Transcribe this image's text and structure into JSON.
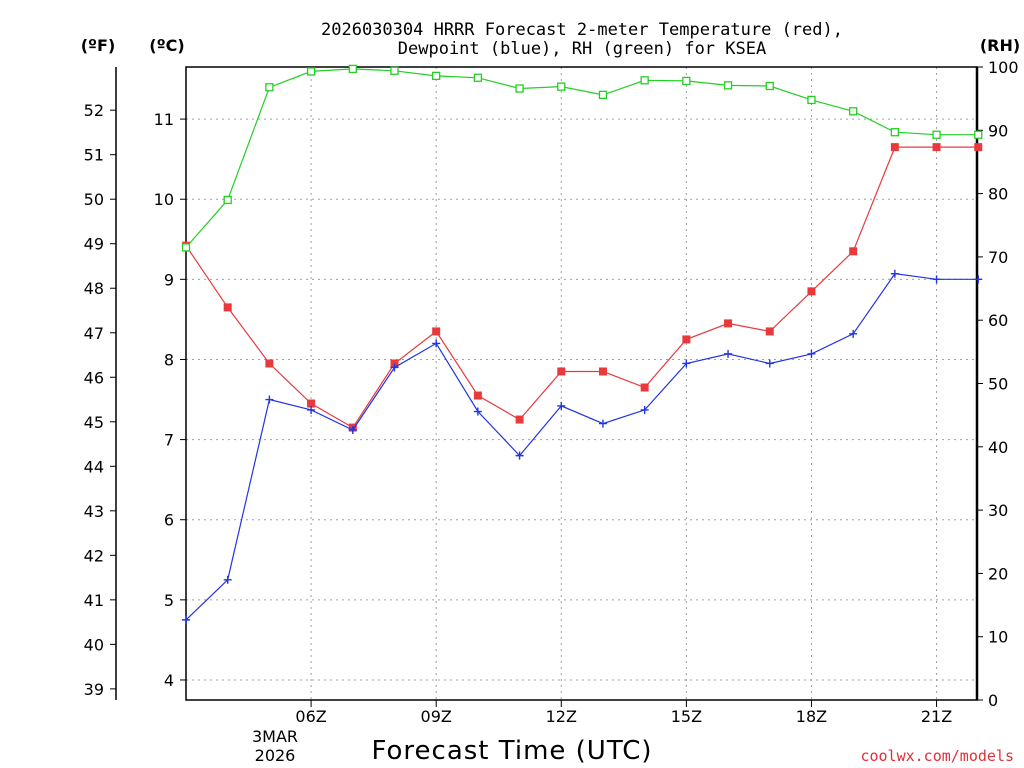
{
  "chart_data": {
    "type": "line",
    "title_line1": "2026030304 HRRR Forecast 2-meter Temperature (red),",
    "title_line2": "Dewpoint (blue), RH (green) for KSEA",
    "xlabel": "Forecast Time (UTC)",
    "credit": "coolwx.com/models",
    "unit_labels": {
      "fahrenheit": "(ºF)",
      "celsius": "(ºC)",
      "rh": "(RH)"
    },
    "x_hours": [
      3,
      4,
      5,
      6,
      7,
      8,
      9,
      10,
      11,
      12,
      13,
      14,
      15,
      16,
      17,
      18,
      19,
      20,
      21,
      22
    ],
    "x_range": [
      3,
      21.97
    ],
    "x_ticks": [
      {
        "hour": 6,
        "label": "06Z"
      },
      {
        "hour": 9,
        "label": "09Z"
      },
      {
        "hour": 12,
        "label": "12Z"
      },
      {
        "hour": 15,
        "label": "15Z"
      },
      {
        "hour": 18,
        "label": "18Z"
      },
      {
        "hour": 21,
        "label": "21Z"
      }
    ],
    "date_labels": [
      "3MAR",
      "2026"
    ],
    "celsius_range": [
      3.75,
      11.65
    ],
    "celsius_ticks": [
      4,
      5,
      6,
      7,
      8,
      9,
      10,
      11
    ],
    "fahrenheit_ticks": [
      39,
      40,
      41,
      42,
      43,
      44,
      45,
      46,
      47,
      48,
      49,
      50,
      51,
      52
    ],
    "rh_range": [
      0,
      100
    ],
    "rh_ticks": [
      0,
      10,
      20,
      30,
      40,
      50,
      60,
      70,
      80,
      90,
      100
    ],
    "colors": {
      "temperature": "#e8393c",
      "dewpoint": "#2135e0",
      "rh": "#22d022",
      "grid": "#a0a0a0",
      "credit": "#e0303a"
    },
    "series": [
      {
        "name": "Temperature",
        "axis": "celsius",
        "marker": "filled-square",
        "color": "#e8393c",
        "values": [
          9.42,
          8.65,
          7.95,
          7.45,
          7.15,
          7.95,
          8.35,
          7.55,
          7.25,
          7.85,
          7.85,
          7.65,
          8.25,
          8.45,
          8.35,
          8.85,
          9.35,
          10.65,
          10.65,
          10.65
        ]
      },
      {
        "name": "Dewpoint",
        "axis": "celsius",
        "marker": "plus",
        "color": "#2135e0",
        "values": [
          4.75,
          5.25,
          7.5,
          7.37,
          7.12,
          7.9,
          8.2,
          7.35,
          6.8,
          7.42,
          7.2,
          7.37,
          7.95,
          8.07,
          7.95,
          8.07,
          8.32,
          9.07,
          9.0,
          9.0
        ]
      },
      {
        "name": "RH",
        "axis": "rh",
        "marker": "open-square",
        "color": "#22d022",
        "values": [
          71.5,
          79.0,
          96.8,
          99.3,
          99.7,
          99.4,
          98.6,
          98.3,
          96.6,
          96.9,
          95.6,
          97.9,
          97.8,
          97.1,
          97.0,
          94.8,
          93.0,
          89.7,
          89.3,
          89.3
        ]
      }
    ]
  }
}
